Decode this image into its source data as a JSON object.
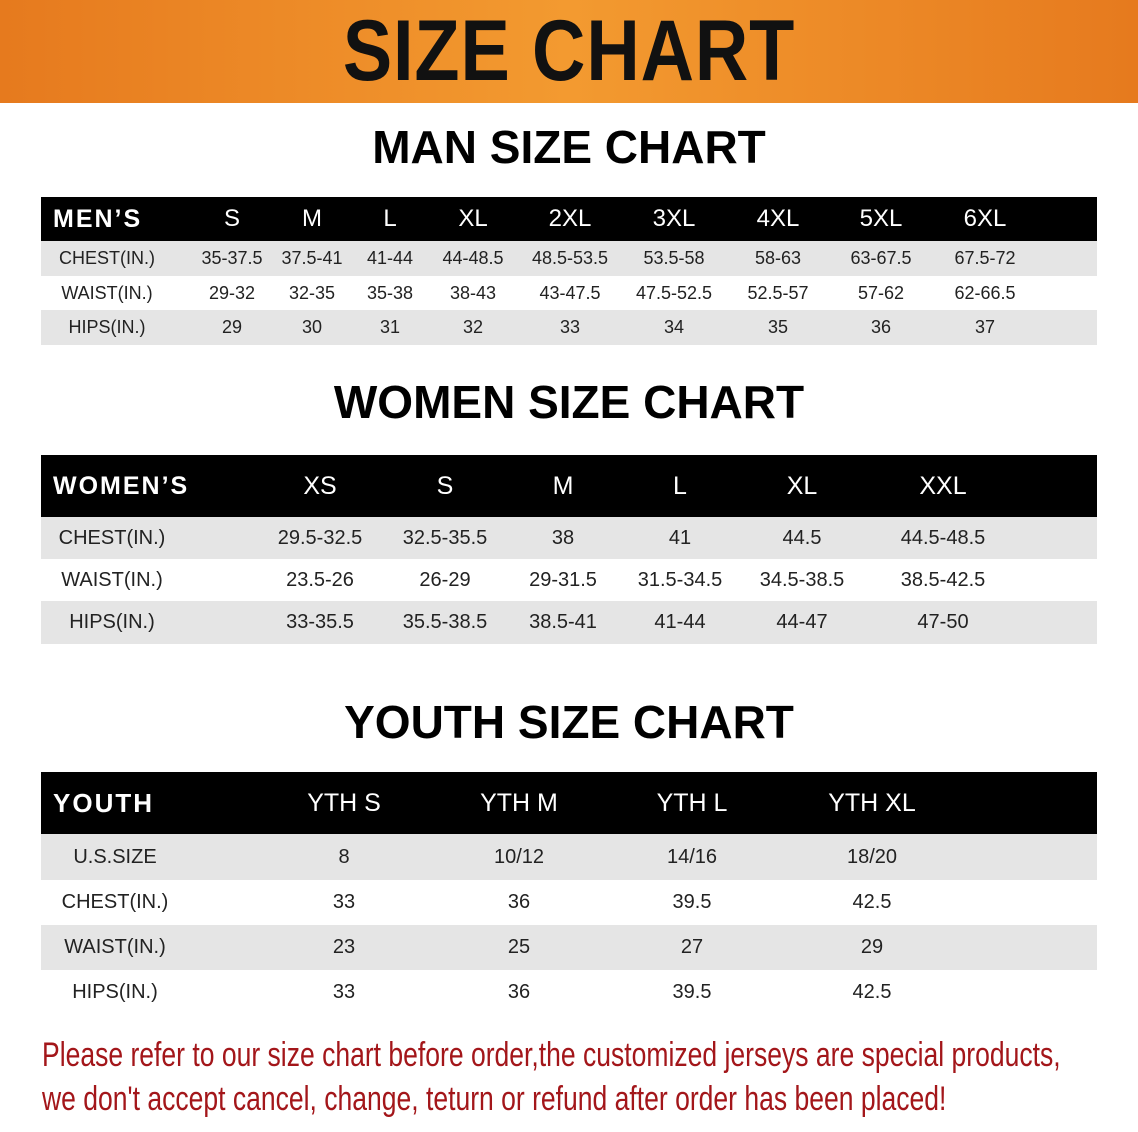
{
  "banner_title": "SIZE CHART",
  "men": {
    "title": "MAN SIZE CHART",
    "header": "MEN’S",
    "sizes": [
      "S",
      "M",
      "L",
      "XL",
      "2XL",
      "3XL",
      "4XL",
      "5XL",
      "6XL"
    ],
    "rows": [
      {
        "label": "CHEST(IN.)",
        "values": [
          "35-37.5",
          "37.5-41",
          "41-44",
          "44-48.5",
          "48.5-53.5",
          "53.5-58",
          "58-63",
          "63-67.5",
          "67.5-72"
        ]
      },
      {
        "label": "WAIST(IN.)",
        "values": [
          "29-32",
          "32-35",
          "35-38",
          "38-43",
          "43-47.5",
          "47.5-52.5",
          "52.5-57",
          "57-62",
          "62-66.5"
        ]
      },
      {
        "label": "HIPS(IN.)",
        "values": [
          "29",
          "30",
          "31",
          "32",
          "33",
          "34",
          "35",
          "36",
          "37"
        ]
      }
    ]
  },
  "women": {
    "title": "WOMEN SIZE CHART",
    "header": "WOMEN’S",
    "sizes": [
      "XS",
      "S",
      "M",
      "L",
      "XL",
      "XXL"
    ],
    "rows": [
      {
        "label": "CHEST(IN.)",
        "values": [
          "29.5-32.5",
          "32.5-35.5",
          "38",
          "41",
          "44.5",
          "44.5-48.5"
        ]
      },
      {
        "label": "WAIST(IN.)",
        "values": [
          "23.5-26",
          "26-29",
          "29-31.5",
          "31.5-34.5",
          "34.5-38.5",
          "38.5-42.5"
        ]
      },
      {
        "label": "HIPS(IN.)",
        "values": [
          "33-35.5",
          "35.5-38.5",
          "38.5-41",
          "41-44",
          "44-47",
          "47-50"
        ]
      }
    ]
  },
  "youth": {
    "title": "YOUTH SIZE CHART",
    "header": "YOUTH",
    "sizes": [
      "YTH S",
      "YTH M",
      "YTH L",
      "YTH XL"
    ],
    "rows": [
      {
        "label": "U.S.SIZE",
        "values": [
          "8",
          "10/12",
          "14/16",
          "18/20"
        ]
      },
      {
        "label": "CHEST(IN.)",
        "values": [
          "33",
          "36",
          "39.5",
          "42.5"
        ]
      },
      {
        "label": "WAIST(IN.)",
        "values": [
          "23",
          "25",
          "27",
          "29"
        ]
      },
      {
        "label": "HIPS(IN.)",
        "values": [
          "33",
          "36",
          "39.5",
          "42.5"
        ]
      }
    ]
  },
  "notice": {
    "line1": "Please refer to our size chart before order,the customized jerseys are special products,",
    "line2": "we don't accept cancel, change, teturn or refund after order has been placed!",
    "color": "#a3161a"
  }
}
